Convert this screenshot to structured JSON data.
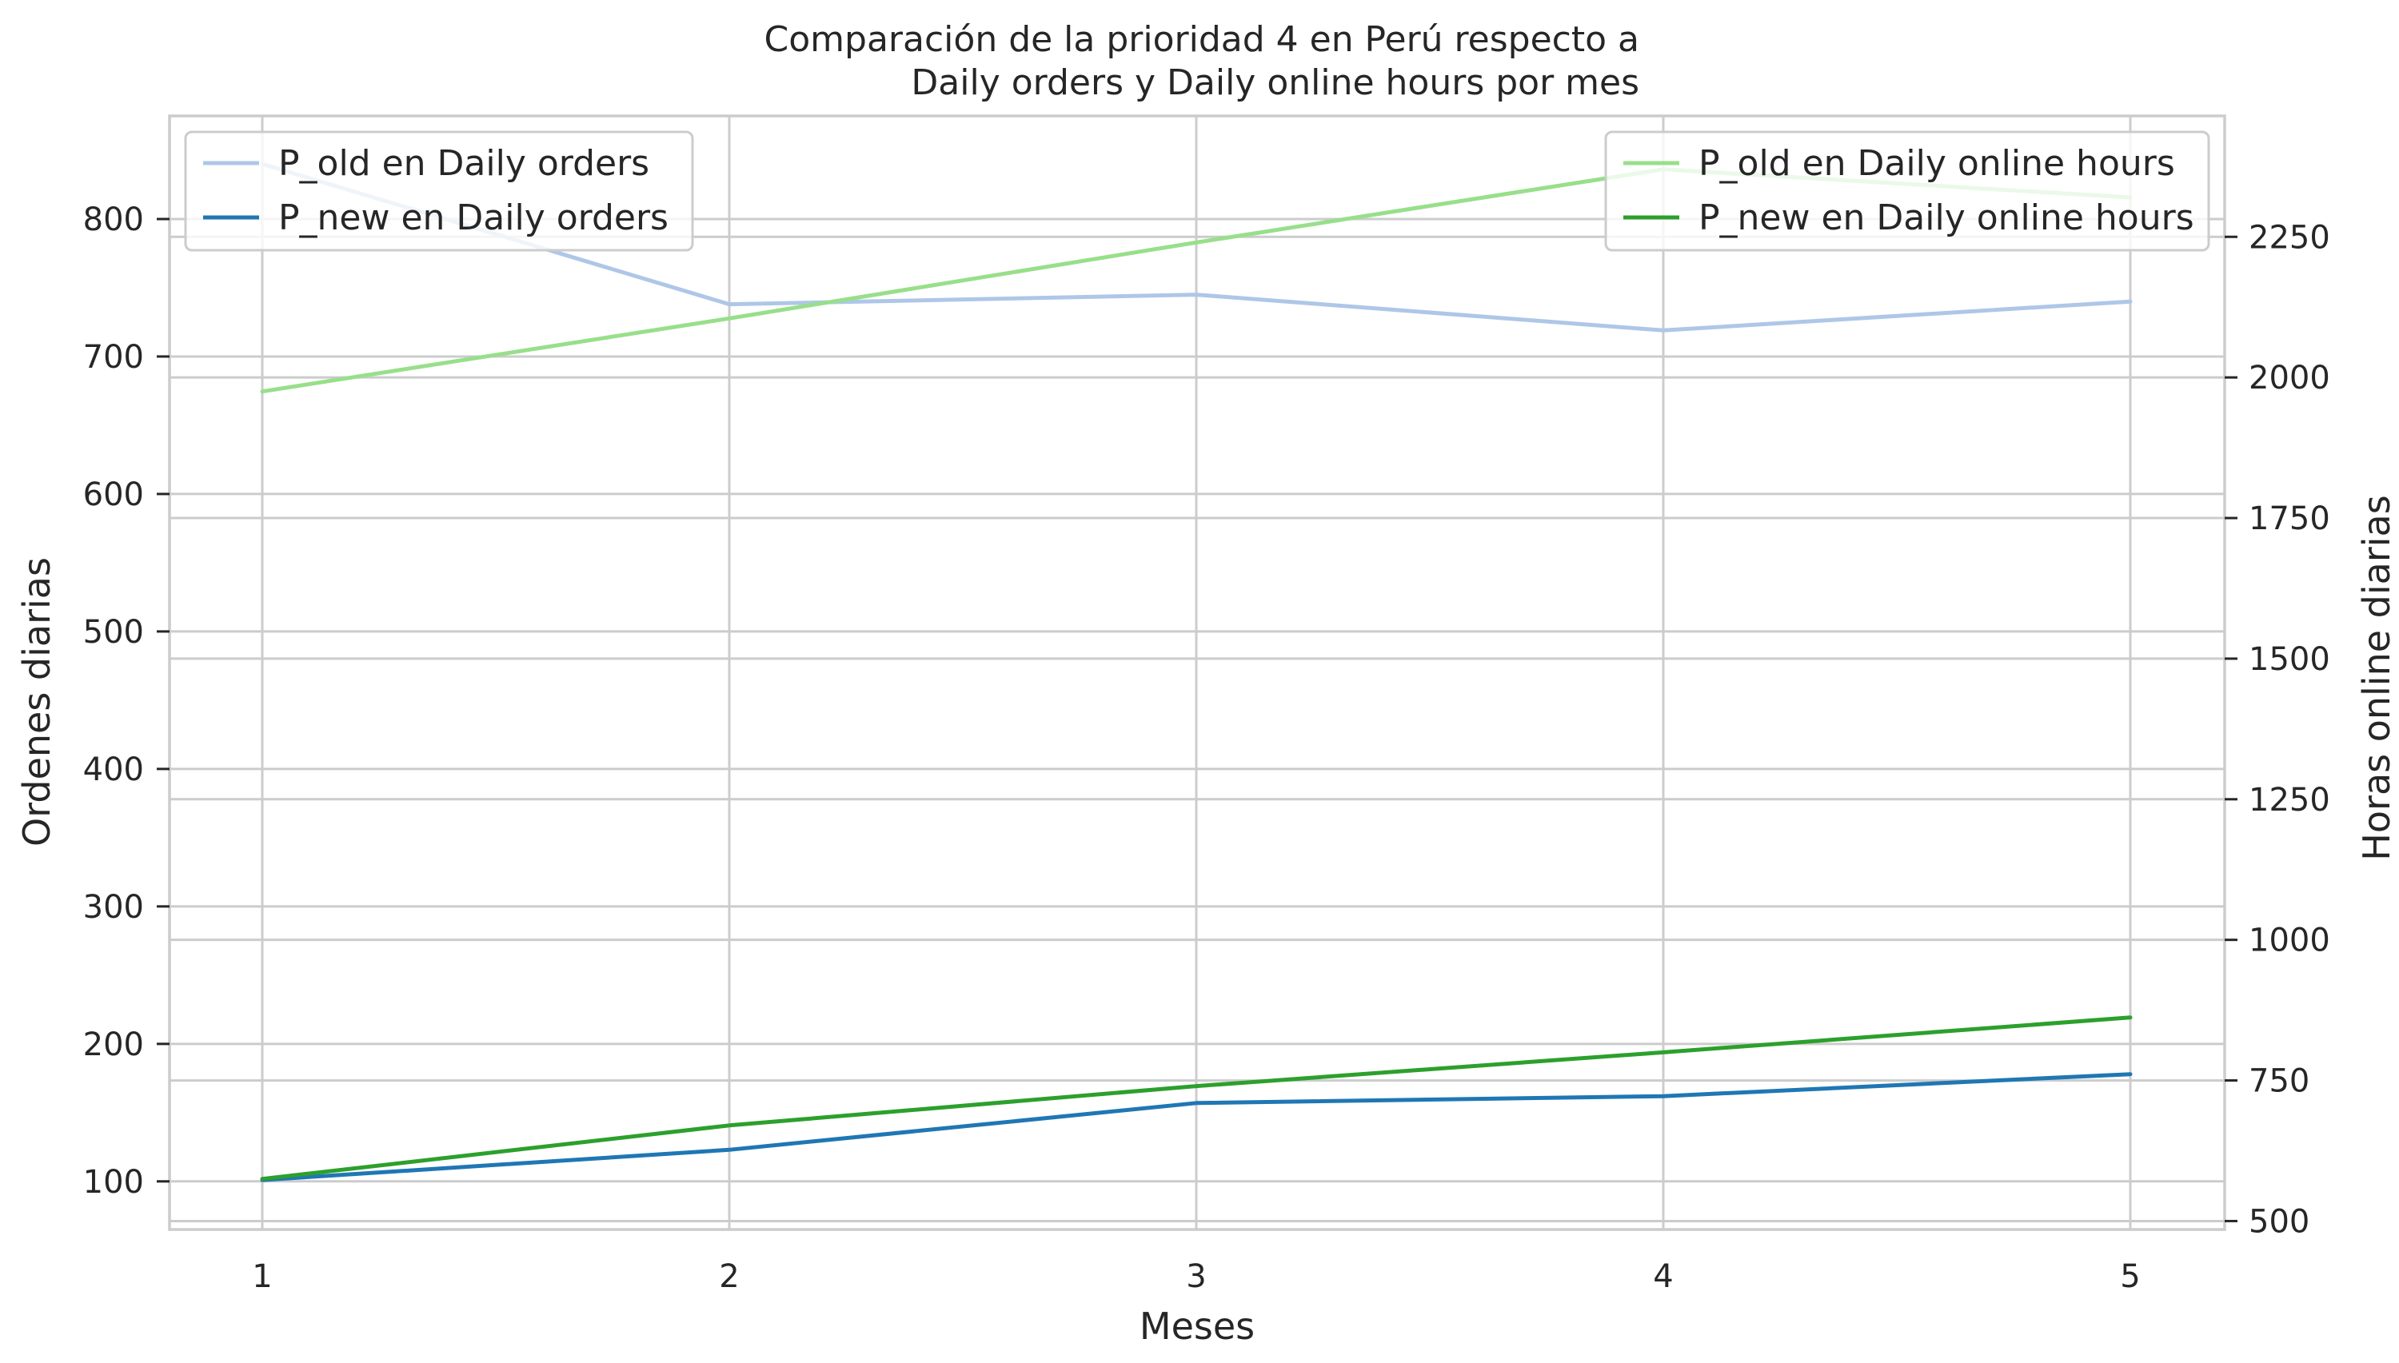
{
  "chart_data": {
    "type": "line",
    "title_line1": "Comparación de la prioridad 4 en Perú respecto a",
    "title_line2": "Daily orders y Daily online hours por mes",
    "xlabel": "Meses",
    "ylabel_left": "Ordenes diarias",
    "ylabel_right": "Horas online diarias",
    "x": [
      1,
      2,
      3,
      4,
      5
    ],
    "x_ticks": [
      "1",
      "2",
      "3",
      "4",
      "5"
    ],
    "ylim_left": [
      65,
      875
    ],
    "yticks_left": [
      100,
      200,
      300,
      400,
      500,
      600,
      700,
      800
    ],
    "ylim_right": [
      485,
      2465
    ],
    "yticks_right": [
      500,
      750,
      1000,
      1250,
      1500,
      1750,
      2000,
      2250
    ],
    "grid": true,
    "series_left": [
      {
        "name": "P_old en Daily orders",
        "color": "#aec7e8",
        "values": [
          840,
          738,
          745,
          719,
          740
        ]
      },
      {
        "name": "P_new en Daily orders",
        "color": "#1f77b4",
        "values": [
          101,
          123,
          157,
          162,
          178
        ]
      }
    ],
    "series_right": [
      {
        "name": "P_old en Daily online hours",
        "color": "#98df8a",
        "values": [
          1975,
          2105,
          2240,
          2370,
          2320
        ]
      },
      {
        "name": "P_new en Daily online hours",
        "color": "#2ca02c",
        "values": [
          575,
          670,
          740,
          800,
          862
        ]
      }
    ],
    "legend_left_placement": "upper-left",
    "legend_right_placement": "upper-right"
  }
}
